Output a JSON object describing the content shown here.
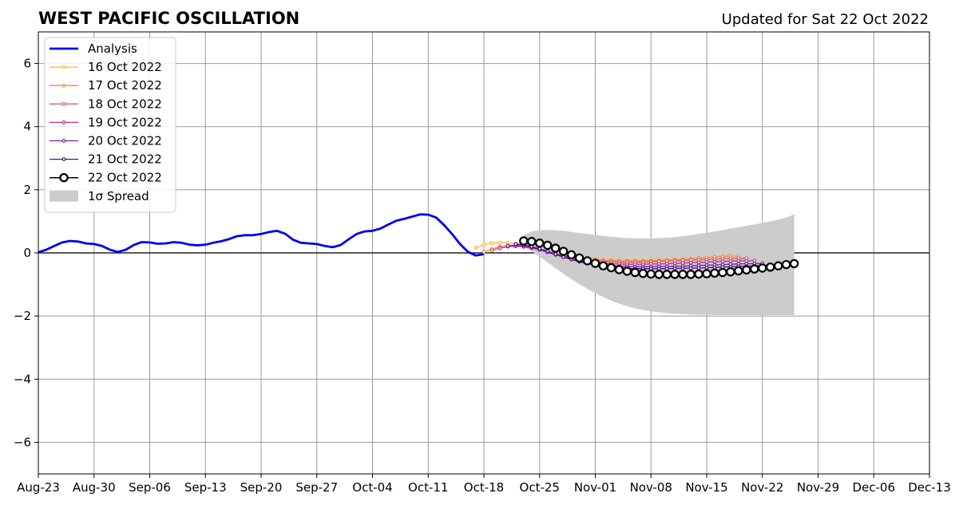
{
  "chart_data": {
    "type": "line",
    "title": "WEST PACIFIC OSCILLATION",
    "subtitle": "Updated for Sat 22 Oct 2022",
    "xlabel": "",
    "ylabel": "",
    "ylim": [
      -7,
      7
    ],
    "xlim": [
      "2022-08-23",
      "2022-12-13"
    ],
    "x_ticks": [
      "Aug-23",
      "Aug-30",
      "Sep-06",
      "Sep-13",
      "Sep-20",
      "Sep-27",
      "Oct-04",
      "Oct-11",
      "Oct-18",
      "Oct-25",
      "Nov-01",
      "Nov-08",
      "Nov-15",
      "Nov-22",
      "Nov-29",
      "Dec-06",
      "Dec-13"
    ],
    "y_ticks": [
      -6,
      -4,
      -2,
      0,
      2,
      4,
      6
    ],
    "y_tick_labels": [
      "−6",
      "−4",
      "−2",
      "0",
      "2",
      "4",
      "6"
    ],
    "grid": true,
    "legend_position": "top-left",
    "series": [
      {
        "name": "Analysis",
        "color": "#0000ee",
        "start": "2022-08-23",
        "values": [
          0.02,
          0.1,
          0.22,
          0.33,
          0.38,
          0.36,
          0.3,
          0.28,
          0.22,
          0.1,
          0.03,
          0.1,
          0.25,
          0.34,
          0.33,
          0.29,
          0.3,
          0.34,
          0.32,
          0.26,
          0.24,
          0.26,
          0.32,
          0.37,
          0.44,
          0.53,
          0.56,
          0.56,
          0.6,
          0.66,
          0.7,
          0.61,
          0.42,
          0.32,
          0.3,
          0.28,
          0.22,
          0.18,
          0.25,
          0.43,
          0.6,
          0.68,
          0.7,
          0.77,
          0.9,
          1.02,
          1.08,
          1.15,
          1.22,
          1.21,
          1.12,
          0.88,
          0.6,
          0.28,
          0.03,
          -0.08,
          -0.04
        ]
      },
      {
        "name": "16 Oct 2022",
        "color": "#fbb63a",
        "start": "2022-10-17",
        "values": [
          0.16,
          0.26,
          0.31,
          0.33,
          0.32,
          0.28,
          0.22,
          0.16,
          0.1,
          0.04,
          -0.02,
          -0.07,
          -0.11,
          -0.14,
          -0.17,
          -0.19,
          -0.21,
          -0.22,
          -0.23,
          -0.23,
          -0.23,
          -0.23,
          -0.22,
          -0.22,
          -0.21,
          -0.2,
          -0.19,
          -0.18,
          -0.16,
          -0.14,
          -0.12,
          -0.1,
          -0.08
        ]
      },
      {
        "name": "17 Oct 2022",
        "color": "#f4884a",
        "start": "2022-10-18",
        "values": [
          0.03,
          0.12,
          0.2,
          0.24,
          0.24,
          0.21,
          0.16,
          0.1,
          0.04,
          -0.02,
          -0.07,
          -0.12,
          -0.16,
          -0.19,
          -0.22,
          -0.24,
          -0.25,
          -0.26,
          -0.26,
          -0.26,
          -0.26,
          -0.25,
          -0.24,
          -0.23,
          -0.22,
          -0.21,
          -0.19,
          -0.17,
          -0.15,
          -0.13,
          -0.12,
          -0.1,
          -0.1
        ]
      },
      {
        "name": "18 Oct 2022",
        "color": "#e05a6a",
        "start": "2022-10-19",
        "values": [
          0.08,
          0.15,
          0.2,
          0.21,
          0.19,
          0.15,
          0.1,
          0.04,
          -0.02,
          -0.08,
          -0.13,
          -0.17,
          -0.21,
          -0.24,
          -0.26,
          -0.28,
          -0.29,
          -0.29,
          -0.29,
          -0.29,
          -0.28,
          -0.27,
          -0.26,
          -0.25,
          -0.24,
          -0.23,
          -0.22,
          -0.21,
          -0.2,
          -0.19,
          -0.18,
          -0.17,
          -0.17
        ]
      },
      {
        "name": "19 Oct 2022",
        "color": "#b8338a",
        "start": "2022-10-20",
        "values": [
          0.15,
          0.2,
          0.22,
          0.2,
          0.16,
          0.1,
          0.03,
          -0.04,
          -0.1,
          -0.16,
          -0.21,
          -0.25,
          -0.29,
          -0.32,
          -0.34,
          -0.35,
          -0.36,
          -0.36,
          -0.36,
          -0.35,
          -0.35,
          -0.34,
          -0.33,
          -0.32,
          -0.31,
          -0.3,
          -0.29,
          -0.28,
          -0.27,
          -0.26,
          -0.25,
          -0.25,
          -0.25
        ]
      },
      {
        "name": "20 Oct 2022",
        "color": "#7b1fa2",
        "start": "2022-10-21",
        "values": [
          0.22,
          0.24,
          0.22,
          0.17,
          0.1,
          0.02,
          -0.06,
          -0.13,
          -0.2,
          -0.26,
          -0.31,
          -0.35,
          -0.38,
          -0.41,
          -0.42,
          -0.43,
          -0.44,
          -0.44,
          -0.44,
          -0.43,
          -0.43,
          -0.42,
          -0.42,
          -0.41,
          -0.4,
          -0.39,
          -0.38,
          -0.37,
          -0.36,
          -0.35,
          -0.34,
          -0.34,
          -0.33
        ]
      },
      {
        "name": "21 Oct 2022",
        "color": "#4b0f8c",
        "start": "2022-10-22",
        "values": [
          0.28,
          0.26,
          0.2,
          0.13,
          0.05,
          -0.04,
          -0.13,
          -0.21,
          -0.28,
          -0.34,
          -0.39,
          -0.43,
          -0.46,
          -0.48,
          -0.49,
          -0.5,
          -0.5,
          -0.5,
          -0.5,
          -0.5,
          -0.49,
          -0.49,
          -0.48,
          -0.48,
          -0.47,
          -0.46,
          -0.45,
          -0.44,
          -0.43,
          -0.42,
          -0.41,
          -0.4,
          -0.39
        ]
      },
      {
        "name": "22 Oct 2022",
        "color": "#000000",
        "start": "2022-10-23",
        "values": [
          0.38,
          0.36,
          0.31,
          0.24,
          0.15,
          0.05,
          -0.06,
          -0.16,
          -0.25,
          -0.33,
          -0.41,
          -0.47,
          -0.53,
          -0.58,
          -0.62,
          -0.65,
          -0.67,
          -0.68,
          -0.68,
          -0.68,
          -0.68,
          -0.68,
          -0.67,
          -0.66,
          -0.64,
          -0.62,
          -0.6,
          -0.57,
          -0.54,
          -0.51,
          -0.48,
          -0.45,
          -0.41,
          -0.37,
          -0.34
        ]
      }
    ],
    "spread": {
      "name": "1σ Spread",
      "color": "#cccccc",
      "start": "2022-10-23",
      "upper": [
        0.55,
        0.68,
        0.72,
        0.73,
        0.72,
        0.7,
        0.67,
        0.63,
        0.6,
        0.57,
        0.54,
        0.51,
        0.49,
        0.47,
        0.46,
        0.46,
        0.46,
        0.47,
        0.48,
        0.5,
        0.53,
        0.56,
        0.6,
        0.64,
        0.68,
        0.72,
        0.77,
        0.81,
        0.86,
        0.9,
        0.95,
        1.0,
        1.05,
        1.12,
        1.22
      ],
      "lower": [
        0.2,
        0.05,
        -0.12,
        -0.3,
        -0.48,
        -0.66,
        -0.83,
        -0.99,
        -1.14,
        -1.28,
        -1.4,
        -1.51,
        -1.61,
        -1.69,
        -1.76,
        -1.81,
        -1.85,
        -1.88,
        -1.91,
        -1.93,
        -1.94,
        -1.95,
        -1.96,
        -1.96,
        -1.97,
        -1.97,
        -1.97,
        -1.97,
        -1.97,
        -1.97,
        -1.97,
        -1.97,
        -1.97,
        -1.97,
        -1.97
      ]
    }
  }
}
